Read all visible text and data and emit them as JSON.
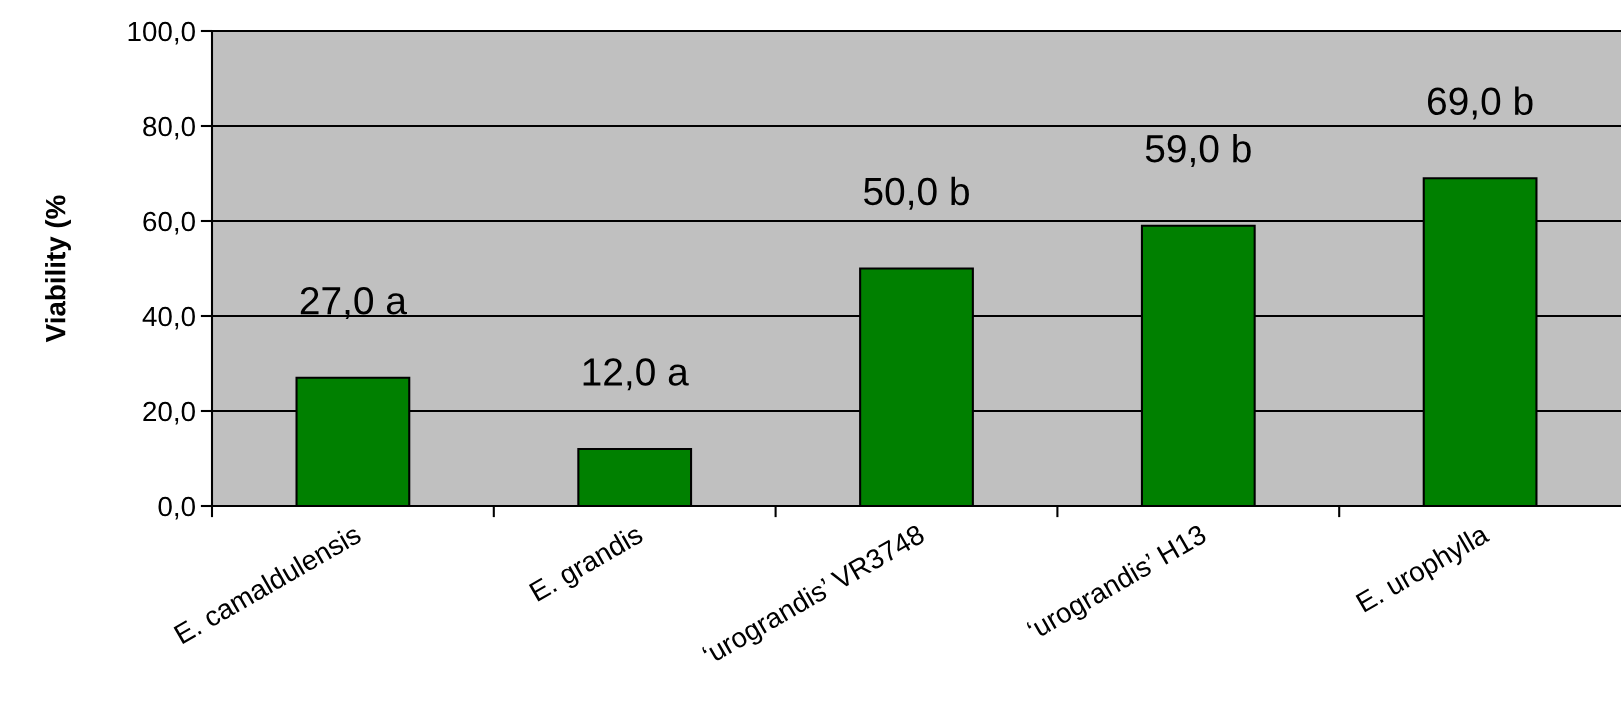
{
  "chart_data": {
    "type": "bar",
    "ylabel": "Viability (%",
    "categories": [
      "E. camaldulensis",
      "E. grandis",
      "‘urograndis’ VR3748",
      "‘urograndis’ H13",
      "E. urophylla"
    ],
    "values": [
      27,
      12,
      50,
      59,
      69
    ],
    "value_labels": [
      "27,0 a",
      "12,0 a",
      "50,0 b",
      "59,0 b",
      "69,0 b"
    ],
    "color": "#008000",
    "ylim": [
      0,
      100
    ],
    "yticks": [
      {
        "value": 0,
        "label": "0,0"
      },
      {
        "value": 20,
        "label": "20,0"
      },
      {
        "value": 40,
        "label": "40,0"
      },
      {
        "value": 60,
        "label": "60,0"
      },
      {
        "value": 80,
        "label": "80,0"
      },
      {
        "value": 100,
        "label": "100,0"
      }
    ],
    "grid": "y"
  }
}
